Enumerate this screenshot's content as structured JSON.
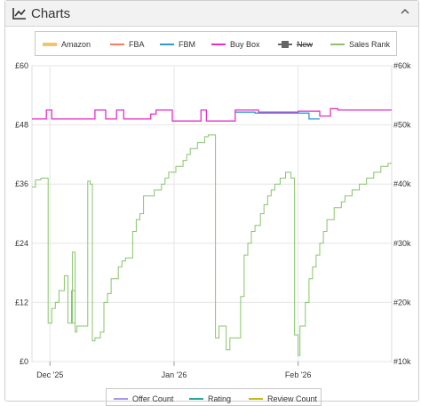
{
  "header": {
    "title": "Charts",
    "collapse_icon": "chevron-up-icon",
    "chart_icon": "line-chart-icon"
  },
  "legend": [
    {
      "label": "Amazon",
      "color": "#f5c26b",
      "enabled": true
    },
    {
      "label": "FBA",
      "color": "#ff7a5c",
      "enabled": true
    },
    {
      "label": "FBM",
      "color": "#2b9ad6",
      "enabled": true
    },
    {
      "label": "Buy Box",
      "color": "#e62ec8",
      "enabled": true
    },
    {
      "label": "New",
      "color": "#666666",
      "enabled": false
    },
    {
      "label": "Sales Rank",
      "color": "#88c46c",
      "enabled": true
    }
  ],
  "legend_bottom": [
    {
      "label": "Offer Count",
      "color": "#a898e8"
    },
    {
      "label": "Rating",
      "color": "#2aa89a"
    },
    {
      "label": "Review Count",
      "color": "#c8b820"
    }
  ],
  "chart_data": {
    "type": "line",
    "x_axis": {
      "ticks": [
        "Dec '25",
        "Jan '26",
        "Feb '26"
      ]
    },
    "y_left": {
      "ticks": [
        "£0",
        "£12",
        "£24",
        "£36",
        "£48",
        "£60"
      ],
      "range": [
        0,
        60
      ],
      "unit": "£"
    },
    "y_right": {
      "ticks": [
        "#10k",
        "#20k",
        "#30k",
        "#40k",
        "#50k",
        "#60k"
      ],
      "range": [
        10000,
        60000
      ]
    },
    "grid": true,
    "legend_position": "top",
    "series": [
      {
        "name": "Buy Box",
        "axis": "left",
        "color": "#e62ec8",
        "points": [
          [
            0,
            49.2
          ],
          [
            0.04,
            49.2
          ],
          [
            0.04,
            51
          ],
          [
            0.055,
            51
          ],
          [
            0.055,
            49.2
          ],
          [
            0.175,
            49.2
          ],
          [
            0.175,
            51
          ],
          [
            0.205,
            51
          ],
          [
            0.205,
            49.2
          ],
          [
            0.235,
            49.2
          ],
          [
            0.235,
            51
          ],
          [
            0.255,
            51
          ],
          [
            0.255,
            49.2
          ],
          [
            0.33,
            49.2
          ],
          [
            0.33,
            50.2
          ],
          [
            0.345,
            50.2
          ],
          [
            0.345,
            51
          ],
          [
            0.39,
            51
          ],
          [
            0.39,
            48.8
          ],
          [
            0.47,
            48.8
          ],
          [
            0.47,
            51
          ],
          [
            0.485,
            51
          ],
          [
            0.485,
            48.8
          ],
          [
            0.565,
            48.8
          ],
          [
            0.565,
            51
          ],
          [
            0.63,
            51
          ],
          [
            0.63,
            50.6
          ],
          [
            0.74,
            50.6
          ],
          [
            0.74,
            50.8
          ],
          [
            0.8,
            50.8
          ],
          [
            0.8,
            49.8
          ],
          [
            0.83,
            49.8
          ],
          [
            0.83,
            51.3
          ],
          [
            0.85,
            51.3
          ],
          [
            0.85,
            51
          ],
          [
            1,
            51
          ]
        ]
      },
      {
        "name": "FBM",
        "axis": "left",
        "color": "#2b9ad6",
        "points": [
          [
            0.565,
            50.6
          ],
          [
            0.62,
            50.6
          ],
          [
            0.62,
            50.4
          ],
          [
            0.77,
            50.4
          ],
          [
            0.77,
            49.2
          ],
          [
            0.8,
            49.2
          ]
        ]
      },
      {
        "name": "Sales Rank",
        "axis": "right",
        "color": "#88c46c",
        "points": [
          [
            0,
            39.5
          ],
          [
            0.01,
            39.5
          ],
          [
            0.01,
            40.7
          ],
          [
            0.025,
            40.7
          ],
          [
            0.025,
            41
          ],
          [
            0.045,
            41
          ],
          [
            0.045,
            16.5
          ],
          [
            0.055,
            16.5
          ],
          [
            0.055,
            19
          ],
          [
            0.065,
            19
          ],
          [
            0.065,
            20
          ],
          [
            0.075,
            20
          ],
          [
            0.075,
            22
          ],
          [
            0.09,
            22
          ],
          [
            0.09,
            24.5
          ],
          [
            0.1,
            24.5
          ],
          [
            0.1,
            16.5
          ],
          [
            0.11,
            16.5
          ],
          [
            0.11,
            22
          ],
          [
            0.12,
            22
          ],
          [
            0.12,
            28.5
          ],
          [
            0.1125,
            28.5
          ],
          [
            0.1125,
            16.5
          ],
          [
            0.12,
            16.5
          ],
          [
            0.12,
            25
          ],
          [
            0.12,
            25
          ],
          [
            0.12,
            15
          ],
          [
            0.125,
            15
          ],
          [
            0.125,
            16
          ],
          [
            0.155,
            16
          ],
          [
            0.155,
            40.5
          ],
          [
            0.162,
            40.5
          ],
          [
            0.162,
            40
          ],
          [
            0.168,
            40
          ],
          [
            0.168,
            13.5
          ],
          [
            0.175,
            13.5
          ],
          [
            0.175,
            14
          ],
          [
            0.19,
            14
          ],
          [
            0.19,
            15
          ],
          [
            0.2,
            15
          ],
          [
            0.2,
            20
          ],
          [
            0.21,
            20
          ],
          [
            0.21,
            21.5
          ],
          [
            0.22,
            21.5
          ],
          [
            0.22,
            24
          ],
          [
            0.24,
            24
          ],
          [
            0.24,
            26
          ],
          [
            0.25,
            26
          ],
          [
            0.25,
            27
          ],
          [
            0.26,
            27
          ],
          [
            0.26,
            27.5
          ],
          [
            0.28,
            27.5
          ],
          [
            0.28,
            32
          ],
          [
            0.29,
            32
          ],
          [
            0.29,
            34
          ],
          [
            0.3,
            34
          ],
          [
            0.3,
            35
          ],
          [
            0.31,
            35
          ],
          [
            0.31,
            38
          ],
          [
            0.34,
            38
          ],
          [
            0.34,
            39
          ],
          [
            0.36,
            39
          ],
          [
            0.36,
            40
          ],
          [
            0.37,
            40
          ],
          [
            0.37,
            41
          ],
          [
            0.38,
            41
          ],
          [
            0.38,
            42
          ],
          [
            0.4,
            42
          ],
          [
            0.4,
            43
          ],
          [
            0.42,
            43
          ],
          [
            0.42,
            44
          ],
          [
            0.43,
            44
          ],
          [
            0.43,
            45
          ],
          [
            0.44,
            45
          ],
          [
            0.44,
            46
          ],
          [
            0.46,
            46
          ],
          [
            0.46,
            47
          ],
          [
            0.48,
            47
          ],
          [
            0.48,
            48
          ],
          [
            0.49,
            48
          ],
          [
            0.49,
            48.3
          ],
          [
            0.51,
            48.3
          ],
          [
            0.51,
            14
          ],
          [
            0.52,
            14
          ],
          [
            0.52,
            16
          ],
          [
            0.54,
            16
          ],
          [
            0.54,
            12
          ],
          [
            0.55,
            12
          ],
          [
            0.55,
            14
          ],
          [
            0.58,
            14
          ],
          [
            0.58,
            21
          ],
          [
            0.59,
            21
          ],
          [
            0.59,
            28
          ],
          [
            0.6,
            28
          ],
          [
            0.6,
            30
          ],
          [
            0.61,
            30
          ],
          [
            0.61,
            32
          ],
          [
            0.62,
            32
          ],
          [
            0.62,
            33
          ],
          [
            0.635,
            33
          ],
          [
            0.635,
            35
          ],
          [
            0.645,
            35
          ],
          [
            0.645,
            36.5
          ],
          [
            0.655,
            36.5
          ],
          [
            0.655,
            38
          ],
          [
            0.665,
            38
          ],
          [
            0.665,
            39
          ],
          [
            0.675,
            39
          ],
          [
            0.675,
            40
          ],
          [
            0.69,
            40
          ],
          [
            0.69,
            41
          ],
          [
            0.705,
            41
          ],
          [
            0.705,
            42
          ],
          [
            0.72,
            42
          ],
          [
            0.72,
            41
          ],
          [
            0.73,
            41
          ],
          [
            0.73,
            14.5
          ],
          [
            0.74,
            14.5
          ],
          [
            0.74,
            11
          ],
          [
            0.745,
            11
          ],
          [
            0.745,
            16
          ],
          [
            0.76,
            16
          ],
          [
            0.76,
            20
          ],
          [
            0.77,
            20
          ],
          [
            0.77,
            24
          ],
          [
            0.78,
            24
          ],
          [
            0.78,
            26
          ],
          [
            0.79,
            26
          ],
          [
            0.79,
            28
          ],
          [
            0.8,
            28
          ],
          [
            0.8,
            30
          ],
          [
            0.81,
            30
          ],
          [
            0.81,
            32
          ],
          [
            0.82,
            32
          ],
          [
            0.82,
            34
          ],
          [
            0.84,
            34
          ],
          [
            0.84,
            36
          ],
          [
            0.86,
            36
          ],
          [
            0.86,
            37
          ],
          [
            0.87,
            37
          ],
          [
            0.87,
            38
          ],
          [
            0.89,
            38
          ],
          [
            0.89,
            39
          ],
          [
            0.91,
            39
          ],
          [
            0.91,
            40
          ],
          [
            0.93,
            40
          ],
          [
            0.93,
            41
          ],
          [
            0.95,
            41
          ],
          [
            0.95,
            42
          ],
          [
            0.97,
            42
          ],
          [
            0.97,
            43
          ],
          [
            0.99,
            43
          ],
          [
            0.99,
            43.5
          ],
          [
            1,
            43.5
          ]
        ]
      }
    ]
  }
}
